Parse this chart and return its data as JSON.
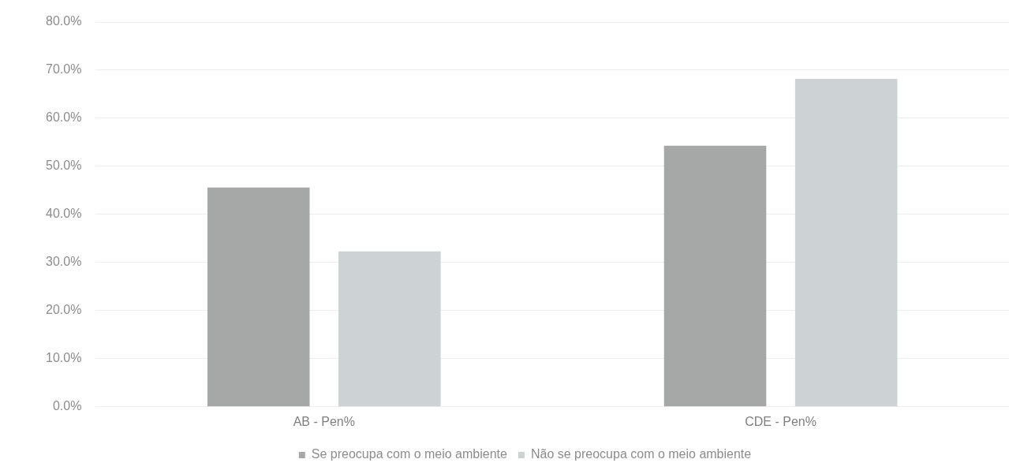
{
  "chart_data": {
    "type": "bar",
    "categories": [
      "AB - Pen%",
      "CDE - Pen%"
    ],
    "series": [
      {
        "name": "Se preocupa com o meio ambiente",
        "color": "#a6a8a7",
        "values": [
          45.6,
          54.3
        ]
      },
      {
        "name": "Não se preocupa com o meio ambiente",
        "color": "#cdd2d4",
        "values": [
          32.3,
          68.2
        ]
      }
    ],
    "ylim": [
      0,
      80
    ],
    "yticks": [
      {
        "value": 0,
        "label": "0.0%"
      },
      {
        "value": 10,
        "label": "10.0%"
      },
      {
        "value": 20,
        "label": "20.0%"
      },
      {
        "value": 30,
        "label": "30.0%"
      },
      {
        "value": 40,
        "label": "40.0%"
      },
      {
        "value": 50,
        "label": "50.0%"
      },
      {
        "value": 60,
        "label": "60.0%"
      },
      {
        "value": 70,
        "label": "70.0%"
      },
      {
        "value": 80,
        "label": "80.0%"
      }
    ],
    "grid": "y",
    "legend": "bottom"
  }
}
